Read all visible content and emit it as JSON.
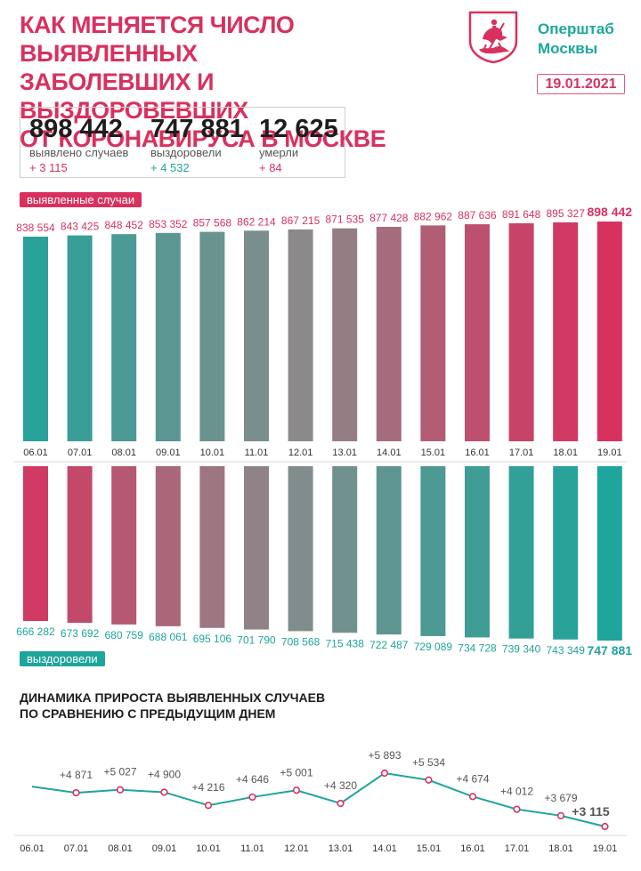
{
  "header": {
    "title_lines": [
      "КАК МЕНЯЕТСЯ ЧИСЛО ВЫЯВЛЕННЫХ",
      "ЗАБОЛЕВШИХ И ВЫЗДОРОВЕВШИХ",
      "ОТ КОРОНАВИРУСА В МОСКВЕ"
    ],
    "brand_line1": "Оперштаб",
    "brand_line2": "Москвы",
    "date": "19.01.2021",
    "logo_icon": "moscow-coat-of-arms-icon"
  },
  "stats": [
    {
      "value": "898 442",
      "label": "выявлено случаев",
      "delta": "+ 3 115",
      "delta_color": "#d8315f"
    },
    {
      "value": "747 881",
      "label": "выздоровели",
      "delta": "+ 4 532",
      "delta_color": "#1ea59c"
    },
    {
      "value": "12 625",
      "label": "умерли",
      "delta": "+ 84",
      "delta_color": "#d8315f"
    }
  ],
  "colors": {
    "accent_pink": "#d8315f",
    "accent_teal": "#1ea59c",
    "neutral_gray": "#8a8a8a"
  },
  "chart_data": [
    {
      "type": "bar",
      "label_pill": "выявленные случаи",
      "categories": [
        "06.01",
        "07.01",
        "08.01",
        "09.01",
        "10.01",
        "11.01",
        "12.01",
        "13.01",
        "14.01",
        "15.01",
        "16.01",
        "17.01",
        "18.01",
        "19.01"
      ],
      "values": [
        838554,
        843425,
        848452,
        853352,
        857568,
        862214,
        867215,
        871535,
        877428,
        882962,
        887636,
        891648,
        895327,
        898442
      ],
      "value_labels": [
        "838 554",
        "843 425",
        "848 452",
        "853 352",
        "857 568",
        "862 214",
        "867 215",
        "871 535",
        "877 428",
        "882 962",
        "887 636",
        "891 648",
        "895 327",
        "898 442"
      ]
    },
    {
      "type": "bar",
      "label_pill": "выздоровели",
      "categories": [
        "06.01",
        "07.01",
        "08.01",
        "09.01",
        "10.01",
        "11.01",
        "12.01",
        "13.01",
        "14.01",
        "15.01",
        "16.01",
        "17.01",
        "18.01",
        "19.01"
      ],
      "values": [
        666282,
        673692,
        680759,
        688061,
        695106,
        701790,
        708568,
        715438,
        722487,
        729089,
        734728,
        739340,
        743349,
        747881
      ],
      "value_labels": [
        "666 282",
        "673 692",
        "680 759",
        "688 061",
        "695 106",
        "701 790",
        "708 568",
        "715 438",
        "722 487",
        "729 089",
        "734 728",
        "739 340",
        "743 349",
        "747 881"
      ]
    },
    {
      "type": "line",
      "title_lines": [
        "ДИНАМИКА ПРИРОСТА ВЫЯВЛЕННЫХ СЛУЧАЕВ",
        "ПО СРАВНЕНИЮ С ПРЕДЫДУЩИМ ДНЕМ"
      ],
      "categories": [
        "06.01",
        "07.01",
        "08.01",
        "09.01",
        "10.01",
        "11.01",
        "12.01",
        "13.01",
        "14.01",
        "15.01",
        "16.01",
        "17.01",
        "18.01",
        "19.01"
      ],
      "values": [
        null,
        4871,
        5027,
        4900,
        4216,
        4646,
        5001,
        4320,
        5893,
        5534,
        4674,
        4012,
        3679,
        3115
      ],
      "value_labels": [
        "",
        "+4 871",
        "+5 027",
        "+4 900",
        "+4 216",
        "+4 646",
        "+5 001",
        "+4 320",
        "+5 893",
        "+5 534",
        "+4 674",
        "+4 012",
        "+3 679",
        "+3 115"
      ]
    }
  ]
}
